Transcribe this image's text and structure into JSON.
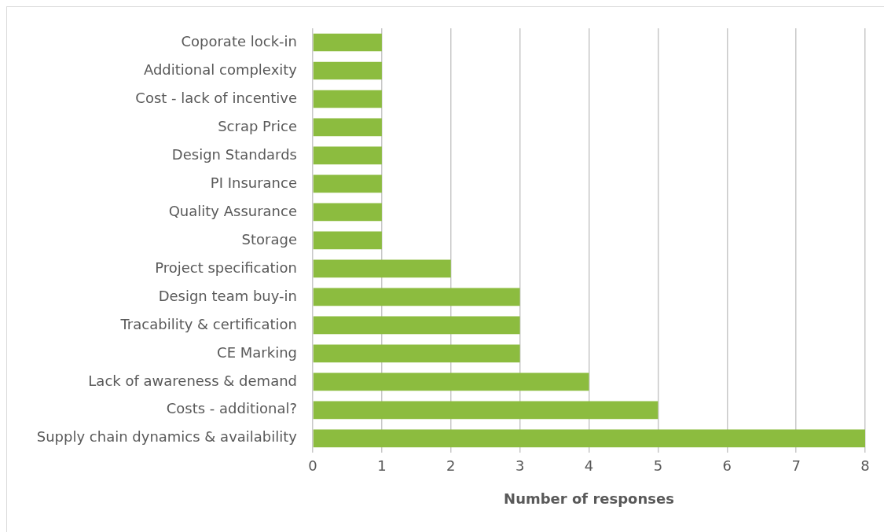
{
  "chart_data": {
    "type": "bar",
    "orientation": "horizontal",
    "xlabel": "Number of responses",
    "categories": [
      "Coporate lock-in",
      "Additional complexity",
      "Cost - lack of incentive",
      "Scrap Price",
      "Design Standards",
      "PI Insurance",
      "Quality Assurance",
      "Storage",
      "Project specification",
      "Design team buy-in",
      "Tracability & certification",
      "CE Marking",
      "Lack of awareness & demand",
      "Costs - additional?",
      "Supply chain dynamics & availability"
    ],
    "values": [
      1,
      1,
      1,
      1,
      1,
      1,
      1,
      1,
      2,
      3,
      3,
      3,
      4,
      5,
      8
    ],
    "color": "#8cbc3f",
    "xlim": [
      0,
      8
    ],
    "xticks": [
      0,
      1,
      2,
      3,
      4,
      5,
      6,
      7,
      8
    ],
    "grid": "x",
    "legend": false
  }
}
